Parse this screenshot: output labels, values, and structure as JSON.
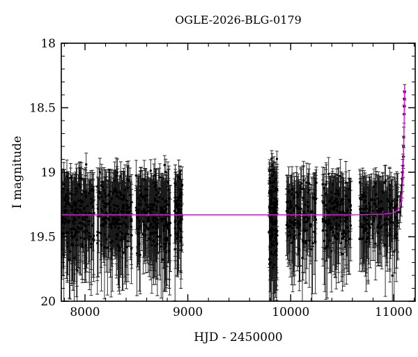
{
  "figure": {
    "background": "#ffffff",
    "title": "OGLE-2026-BLG-0179"
  },
  "chart_data": {
    "type": "scatter",
    "title": "OGLE-2026-BLG-0179",
    "xlabel": "HJD - 2450000",
    "ylabel": "I magnitude",
    "xlim": [
      7770,
      11210
    ],
    "ylim": [
      20,
      18
    ],
    "y_axis_inverted": true,
    "grid": false,
    "legend": "none",
    "x_major_ticks": [
      8000,
      9000,
      10000,
      11000
    ],
    "x_tick_labels": [
      "8000",
      "9000",
      "10000",
      "11000"
    ],
    "x_minor_step": 200,
    "y_major_ticks": [
      18,
      18.5,
      19,
      19.5,
      20
    ],
    "y_tick_labels": [
      "18",
      "18.5",
      "19",
      "19.5",
      "20"
    ],
    "y_minor_step": 0.1,
    "baseline_mag": 19.33,
    "colors": {
      "model_curve": "#ff00ff",
      "data_points": "#000000",
      "error_bars": "#1a1a1a",
      "axis": "#000000",
      "background": "#ffffff"
    },
    "series": [
      {
        "name": "I-band photometry (seasonal baseline clusters)",
        "marker": "filled-circle",
        "errorbars": true
      },
      {
        "name": "microlensing model",
        "type": "line"
      }
    ],
    "baseline_seasons": [
      {
        "t_start": 7775,
        "t_end": 8090,
        "n": 200,
        "mean_mag": 19.34,
        "sigma": 0.135,
        "seed": 11
      },
      {
        "t_start": 8120,
        "t_end": 8455,
        "n": 200,
        "mean_mag": 19.33,
        "sigma": 0.13,
        "seed": 22
      },
      {
        "t_start": 8495,
        "t_end": 8830,
        "n": 220,
        "mean_mag": 19.33,
        "sigma": 0.135,
        "seed": 33
      },
      {
        "t_start": 8868,
        "t_end": 8945,
        "n": 70,
        "mean_mag": 19.33,
        "sigma": 0.12,
        "seed": 44
      },
      {
        "t_start": 9790,
        "t_end": 9868,
        "n": 150,
        "mean_mag": 19.35,
        "sigma": 0.175,
        "seed": 55
      },
      {
        "t_start": 9955,
        "t_end": 10250,
        "n": 130,
        "mean_mag": 19.32,
        "sigma": 0.13,
        "seed": 66
      },
      {
        "t_start": 10310,
        "t_end": 10590,
        "n": 140,
        "mean_mag": 19.33,
        "sigma": 0.13,
        "seed": 77
      },
      {
        "t_start": 10670,
        "t_end": 11045,
        "n": 160,
        "mean_mag": 19.33,
        "sigma": 0.12,
        "seed": 88
      }
    ],
    "errorbar_model": {
      "base": 0.1,
      "slope": 0.42,
      "min": 0.06,
      "max": 0.4,
      "jitter": 0.5
    },
    "event_points": [
      {
        "t": 11058,
        "mag": 19.31,
        "err": 0.13
      },
      {
        "t": 11066,
        "mag": 19.27,
        "err": 0.12
      },
      {
        "t": 11072,
        "mag": 19.22,
        "err": 0.12
      },
      {
        "t": 11078,
        "mag": 19.16,
        "err": 0.11
      },
      {
        "t": 11082,
        "mag": 19.1,
        "err": 0.1
      },
      {
        "t": 11086,
        "mag": 19.05,
        "err": 0.1
      },
      {
        "t": 11089,
        "mag": 19.0,
        "err": 0.1
      },
      {
        "t": 11092,
        "mag": 18.95,
        "err": 0.09
      },
      {
        "t": 11094,
        "mag": 18.88,
        "err": 0.09
      },
      {
        "t": 11097,
        "mag": 18.8,
        "err": 0.08
      },
      {
        "t": 11099,
        "mag": 18.73,
        "err": 0.08
      },
      {
        "t": 11102,
        "mag": 18.55,
        "err": 0.07
      },
      {
        "t": 11104,
        "mag": 18.49,
        "err": 0.06
      },
      {
        "t": 11105,
        "mag": 18.43,
        "err": 0.06
      },
      {
        "t": 11107,
        "mag": 18.38,
        "err": 0.06
      }
    ],
    "model_curve": [
      [
        7770,
        19.33
      ],
      [
        9000,
        19.33
      ],
      [
        10000,
        19.33
      ],
      [
        10600,
        19.33
      ],
      [
        10900,
        19.325
      ],
      [
        11000,
        19.315
      ],
      [
        11030,
        19.3
      ],
      [
        11050,
        19.285
      ],
      [
        11065,
        19.26
      ],
      [
        11075,
        19.225
      ],
      [
        11082,
        19.17
      ],
      [
        11088,
        19.09
      ],
      [
        11092,
        19.0
      ],
      [
        11096,
        18.88
      ],
      [
        11100,
        18.72
      ],
      [
        11103,
        18.57
      ],
      [
        11105,
        18.46
      ],
      [
        11106,
        18.4
      ],
      [
        11107,
        18.35
      ],
      [
        11107.5,
        18.33
      ]
    ]
  }
}
